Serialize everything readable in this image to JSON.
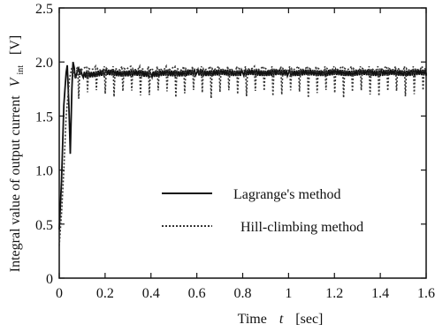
{
  "chart_data": {
    "type": "line",
    "xlabel": {
      "prefix": "Time",
      "var": "t",
      "unit": "[sec]"
    },
    "ylabel": {
      "prefix": "Integral value of output current",
      "var": "V",
      "sub": "int",
      "unit": "[V]"
    },
    "xlim": [
      0,
      1.6
    ],
    "ylim": [
      0,
      2.5
    ],
    "x_ticks": [
      "0",
      "0.2",
      "0.4",
      "0.6",
      "0.8",
      "1",
      "1.2",
      "1.4",
      "1.6"
    ],
    "y_ticks": [
      "0",
      "0.5",
      "1.0",
      "1.5",
      "2.0",
      "2.5"
    ],
    "grid": false,
    "legend_position": "center-right",
    "series": [
      {
        "name": "Lagrange's method",
        "style": "solid",
        "color": "#111111",
        "points": [
          [
            0,
            0.45
          ],
          [
            0.01,
            0.9
          ],
          [
            0.02,
            1.6
          ],
          [
            0.03,
            1.9
          ],
          [
            0.035,
            1.97
          ],
          [
            0.042,
            1.6
          ],
          [
            0.048,
            1.15
          ],
          [
            0.055,
            1.75
          ],
          [
            0.06,
            2.0
          ],
          [
            0.065,
            1.95
          ],
          [
            0.07,
            1.85
          ],
          [
            0.08,
            1.92
          ],
          [
            0.1,
            1.88
          ],
          [
            0.2,
            1.9
          ],
          [
            0.4,
            1.89
          ],
          [
            0.6,
            1.9
          ],
          [
            0.8,
            1.9
          ],
          [
            1.0,
            1.9
          ],
          [
            1.2,
            1.9
          ],
          [
            1.4,
            1.9
          ],
          [
            1.6,
            1.9
          ]
        ],
        "ripple": {
          "amplitude": 0.03,
          "period": 0.01
        }
      },
      {
        "name": "Hill-climbing method",
        "style": "dotted",
        "color": "#333333",
        "points": [
          [
            0,
            0.3
          ],
          [
            0.01,
            0.6
          ],
          [
            0.02,
            1.0
          ],
          [
            0.03,
            1.5
          ],
          [
            0.045,
            1.85
          ],
          [
            0.055,
            1.95
          ],
          [
            0.07,
            1.85
          ],
          [
            0.1,
            1.92
          ],
          [
            0.4,
            1.92
          ],
          [
            0.8,
            1.92
          ],
          [
            1.2,
            1.92
          ],
          [
            1.6,
            1.92
          ]
        ],
        "dips": {
          "start": 0.085,
          "interval": 0.0385,
          "low": 1.66,
          "high": 1.96
        }
      }
    ]
  }
}
